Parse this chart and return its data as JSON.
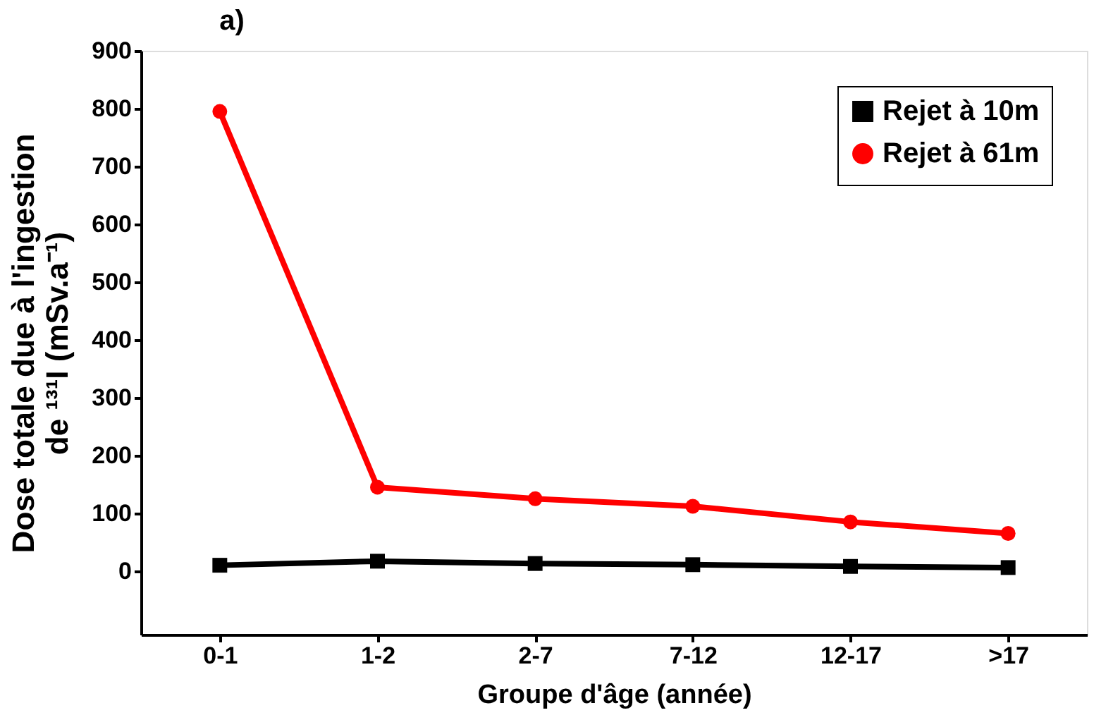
{
  "chart_data": {
    "type": "line",
    "title": "a)",
    "xlabel": "Groupe d'âge (année)",
    "ylabel": [
      "Dose totale due à l'ingestion",
      "de ¹³¹I (mSv.a⁻¹)"
    ],
    "categories": [
      "0-1",
      "1-2",
      "2-7",
      "7-12",
      "12-17",
      ">17"
    ],
    "series": [
      {
        "name": "Rejet à 10m",
        "color": "#000000",
        "marker": "square",
        "values": [
          10,
          17,
          13,
          11,
          8,
          6
        ]
      },
      {
        "name": "Rejet à 61m",
        "color": "#ff0000",
        "marker": "circle",
        "values": [
          795,
          145,
          125,
          112,
          85,
          65
        ]
      }
    ],
    "ylim": [
      -110,
      900
    ],
    "yticks": [
      0,
      100,
      200,
      300,
      400,
      500,
      600,
      700,
      800,
      900
    ],
    "grid": false,
    "line_style": "solid",
    "legend": "top right"
  }
}
